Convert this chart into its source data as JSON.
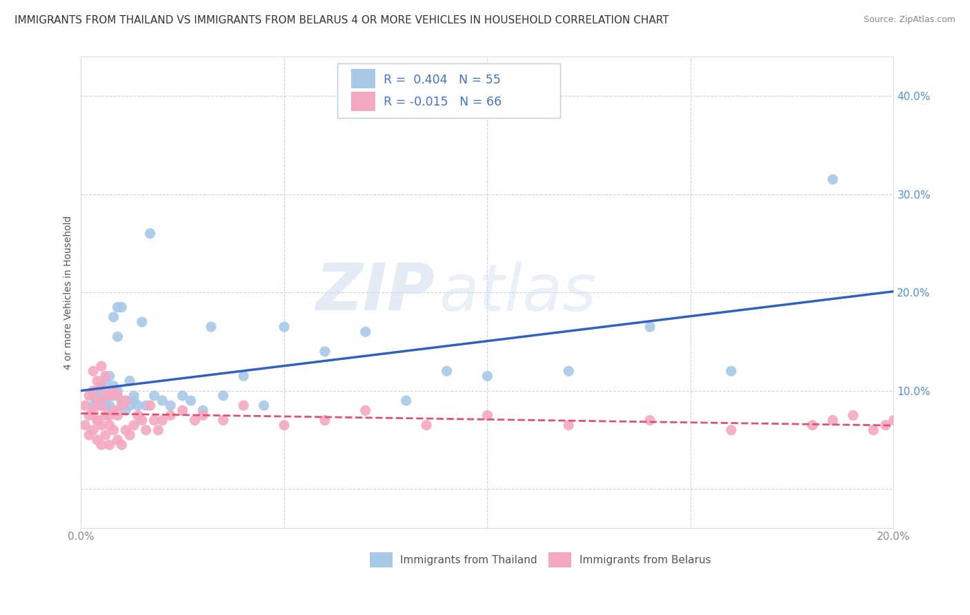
{
  "title": "IMMIGRANTS FROM THAILAND VS IMMIGRANTS FROM BELARUS 4 OR MORE VEHICLES IN HOUSEHOLD CORRELATION CHART",
  "source": "Source: ZipAtlas.com",
  "ylabel": "4 or more Vehicles in Household",
  "xlim": [
    0.0,
    0.2
  ],
  "ylim": [
    -0.04,
    0.44
  ],
  "xticks": [
    0.0,
    0.05,
    0.1,
    0.15,
    0.2
  ],
  "yticks": [
    0.0,
    0.1,
    0.2,
    0.3,
    0.4
  ],
  "thailand_R": 0.404,
  "thailand_N": 55,
  "belarus_R": -0.015,
  "belarus_N": 66,
  "thailand_color": "#a8c8e8",
  "belarus_color": "#f4a8c0",
  "thailand_line_color": "#3060c0",
  "belarus_line_color": "#e05070",
  "legend_label_1": "Immigrants from Thailand",
  "legend_label_2": "Immigrants from Belarus",
  "watermark_zip": "ZIP",
  "watermark_atlas": "atlas",
  "background_color": "#ffffff",
  "grid_color": "#c8d4e8",
  "title_fontsize": 11,
  "axis_label_fontsize": 10,
  "tick_fontsize": 11,
  "tick_color": "#5090d0",
  "thailand_scatter_x": [
    0.003,
    0.003,
    0.004,
    0.004,
    0.005,
    0.005,
    0.005,
    0.005,
    0.006,
    0.006,
    0.006,
    0.006,
    0.007,
    0.007,
    0.007,
    0.008,
    0.008,
    0.008,
    0.008,
    0.009,
    0.009,
    0.009,
    0.01,
    0.01,
    0.01,
    0.011,
    0.011,
    0.012,
    0.012,
    0.013,
    0.013,
    0.014,
    0.015,
    0.016,
    0.017,
    0.018,
    0.02,
    0.022,
    0.025,
    0.027,
    0.03,
    0.032,
    0.035,
    0.04,
    0.045,
    0.05,
    0.06,
    0.07,
    0.08,
    0.09,
    0.1,
    0.12,
    0.14,
    0.16,
    0.185
  ],
  "thailand_scatter_y": [
    0.095,
    0.085,
    0.1,
    0.09,
    0.095,
    0.085,
    0.105,
    0.09,
    0.085,
    0.1,
    0.095,
    0.11,
    0.115,
    0.085,
    0.095,
    0.08,
    0.105,
    0.095,
    0.175,
    0.185,
    0.1,
    0.155,
    0.09,
    0.185,
    0.085,
    0.08,
    0.09,
    0.085,
    0.11,
    0.095,
    0.09,
    0.085,
    0.17,
    0.085,
    0.26,
    0.095,
    0.09,
    0.085,
    0.095,
    0.09,
    0.08,
    0.165,
    0.095,
    0.115,
    0.085,
    0.165,
    0.14,
    0.16,
    0.09,
    0.12,
    0.115,
    0.12,
    0.165,
    0.12,
    0.315
  ],
  "belarus_scatter_x": [
    0.001,
    0.001,
    0.002,
    0.002,
    0.002,
    0.003,
    0.003,
    0.003,
    0.003,
    0.004,
    0.004,
    0.004,
    0.004,
    0.004,
    0.005,
    0.005,
    0.005,
    0.005,
    0.005,
    0.006,
    0.006,
    0.006,
    0.006,
    0.007,
    0.007,
    0.007,
    0.007,
    0.008,
    0.008,
    0.008,
    0.009,
    0.009,
    0.009,
    0.01,
    0.01,
    0.011,
    0.011,
    0.012,
    0.013,
    0.014,
    0.015,
    0.016,
    0.017,
    0.018,
    0.019,
    0.02,
    0.022,
    0.025,
    0.028,
    0.03,
    0.035,
    0.04,
    0.05,
    0.06,
    0.07,
    0.085,
    0.1,
    0.12,
    0.14,
    0.16,
    0.18,
    0.185,
    0.19,
    0.195,
    0.198,
    0.2
  ],
  "belarus_scatter_y": [
    0.065,
    0.085,
    0.055,
    0.075,
    0.095,
    0.06,
    0.08,
    0.1,
    0.12,
    0.05,
    0.07,
    0.09,
    0.11,
    0.07,
    0.045,
    0.065,
    0.085,
    0.105,
    0.125,
    0.055,
    0.075,
    0.095,
    0.115,
    0.045,
    0.075,
    0.095,
    0.065,
    0.06,
    0.1,
    0.08,
    0.05,
    0.075,
    0.095,
    0.045,
    0.085,
    0.06,
    0.09,
    0.055,
    0.065,
    0.075,
    0.07,
    0.06,
    0.085,
    0.07,
    0.06,
    0.07,
    0.075,
    0.08,
    0.07,
    0.075,
    0.07,
    0.085,
    0.065,
    0.07,
    0.08,
    0.065,
    0.075,
    0.065,
    0.07,
    0.06,
    0.065,
    0.07,
    0.075,
    0.06,
    0.065,
    0.07
  ]
}
